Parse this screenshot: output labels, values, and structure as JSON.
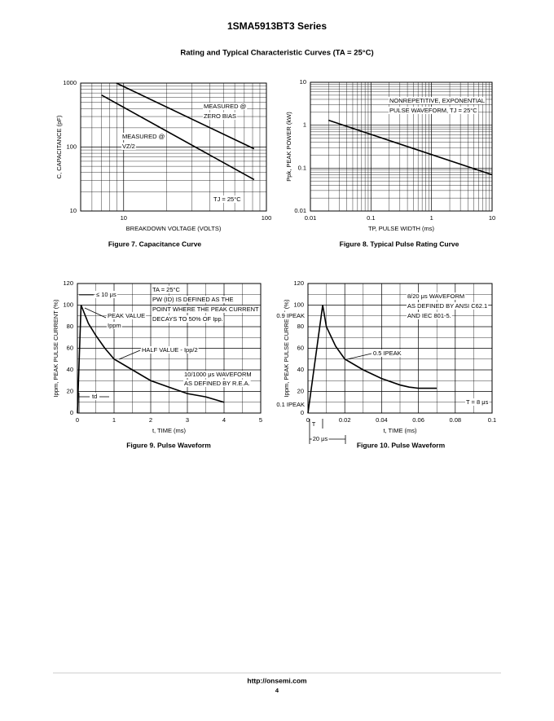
{
  "header": "1SMA5913BT3 Series",
  "section_title": "Rating and Typical Characteristic Curves (TA = 25°C)",
  "chart_data": [
    {
      "type": "line",
      "caption": "Figure 7. Capacitance Curve",
      "x_label": "BREAKDOWN VOLTAGE (VOLTS)",
      "y_label": "C, CAPACITANCE (pF)",
      "xlog": true,
      "ylog": true,
      "grid": true,
      "xlim": [
        5,
        100
      ],
      "ylim": [
        10,
        1000
      ],
      "xticks": [
        10,
        100
      ],
      "yticks": [
        10,
        100,
        1000
      ],
      "annotations": [
        "MEASURED @",
        "ZERO BIAS",
        "MEASURED @",
        "VZ/2",
        "TJ = 25°C"
      ],
      "series": [
        {
          "name": "MEASURED @ ZERO BIAS",
          "color": "#000000",
          "x": [
            8.9,
            82
          ],
          "values": [
            1000,
            94
          ]
        },
        {
          "name": "MEASURED @ VZ/2",
          "color": "#000000",
          "x": [
            7,
            82
          ],
          "values": [
            650,
            31
          ]
        }
      ]
    },
    {
      "type": "line",
      "caption": "Figure 8. Typical Pulse Rating Curve",
      "x_label": "TP, PULSE WIDTH (ms)",
      "y_label": "Ppk, PEAK POWER (kW)",
      "xlog": true,
      "ylog": true,
      "grid": true,
      "xlim": [
        0.01,
        10
      ],
      "ylim": [
        0.01,
        10
      ],
      "xticks": [
        0.01,
        0.1,
        1,
        10
      ],
      "yticks": [
        0.01,
        0.1,
        1,
        10
      ],
      "annotations": [
        "NONREPETITIVE, EXPONENTIAL",
        "PULSE WAVEFORM, TJ = 25°C"
      ],
      "series": [
        {
          "name": "Peak power",
          "color": "#000000",
          "x": [
            0.02,
            10
          ],
          "values": [
            1.3,
            0.07
          ]
        }
      ]
    },
    {
      "type": "line",
      "caption": "Figure 9. Pulse Waveform",
      "x_label": "t, TIME (ms)",
      "y_label": "Ippm, PEAK PULSE CURRENT (%)",
      "xlog": false,
      "ylog": false,
      "grid": true,
      "xlim": [
        0,
        5
      ],
      "ylim": [
        0,
        120
      ],
      "xticks": [
        0,
        1,
        2,
        3,
        4,
        5
      ],
      "yticks": [
        0,
        20,
        40,
        60,
        80,
        100,
        120
      ],
      "annotations": [
        "≤ 10 μs",
        "TA = 25°C",
        "PW (ID) IS DEFINED AS THE",
        "POINT WHERE THE PEAK CURRENT",
        "DECAYS TO 50% OF Ipp.",
        "PEAK VALUE",
        "Ippm",
        "HALF VALUE - Ipp/2",
        "10/1000 μs WAVEFORM",
        "AS DEFINED BY R.E.A.",
        "td"
      ],
      "series": [
        {
          "name": "10/1000 μs waveform",
          "color": "#000000",
          "x": [
            0,
            0.1,
            0.3,
            0.5,
            0.75,
            1,
            1.5,
            2,
            2.5,
            3,
            3.5,
            4
          ],
          "values": [
            0,
            100,
            83,
            72,
            60,
            50,
            40,
            30,
            24,
            18,
            15,
            10
          ]
        }
      ]
    },
    {
      "type": "line",
      "caption": "Figure 10. Pulse Waveform",
      "x_label": "t, TIME (ms)",
      "y_label": "Ippm, PEAK PULSE CURRENT (%)",
      "xlog": false,
      "ylog": false,
      "grid": true,
      "xlim": [
        0,
        0.1
      ],
      "ylim": [
        0,
        120
      ],
      "xticks": [
        0,
        0.02,
        0.04,
        0.06,
        0.08,
        0.1
      ],
      "yticks": [
        0,
        20,
        40,
        60,
        80,
        100,
        120
      ],
      "annotations": [
        "8/20 μs WAVEFORM",
        "AS DEFINED BY ANSI C62.1",
        "AND IEC 801-5.",
        "0.5 IPEAK",
        "T = 8 μs",
        "0.9 IPEAK",
        "0.1 IPEAK",
        "T",
        "20 μs"
      ],
      "series": [
        {
          "name": "8/20 μs waveform",
          "color": "#000000",
          "x": [
            0,
            0.008,
            0.01,
            0.015,
            0.02,
            0.03,
            0.04,
            0.05,
            0.055,
            0.06,
            0.07
          ],
          "values": [
            0,
            100,
            80,
            62,
            50,
            40,
            32,
            26,
            24,
            23,
            23
          ]
        }
      ]
    }
  ],
  "footer": {
    "url": "http://onsemi.com",
    "page": "4"
  }
}
